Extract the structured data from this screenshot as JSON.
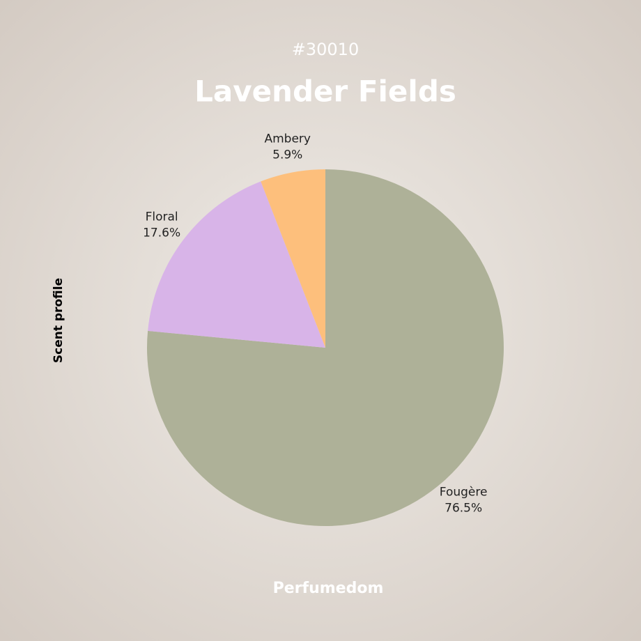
{
  "chart_data": {
    "type": "pie",
    "subtitle": "#30010",
    "title": "Lavender Fields",
    "ylabel": "Scent profile",
    "footer": "Perfumedom",
    "categories": [
      "Fougère",
      "Floral",
      "Ambery"
    ],
    "values": [
      76.5,
      17.6,
      5.9
    ],
    "value_labels": [
      "76.5%",
      "17.6%",
      "5.9%"
    ],
    "colors": [
      "#aeb198",
      "#d8b4e8",
      "#fdbf7c"
    ]
  }
}
